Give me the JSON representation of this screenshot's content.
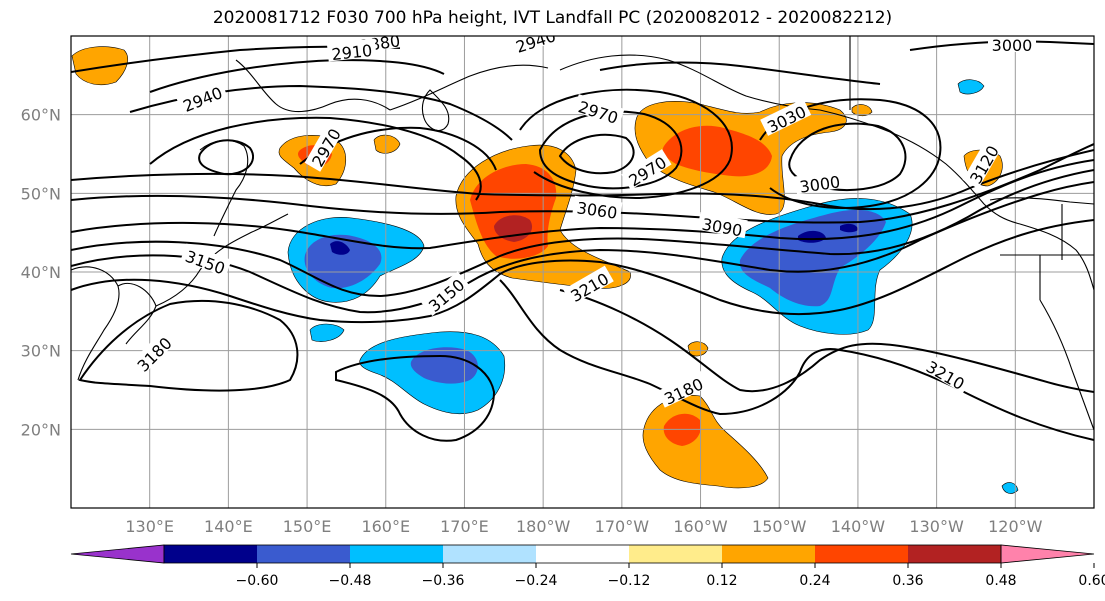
{
  "title": "2020081712 F030 700 hPa height, IVT Landfall PC (2020082012 - 2020082212)",
  "map": {
    "projection": "PlateCarree",
    "lon_range": [
      120,
      250
    ],
    "lat_range": [
      10,
      70
    ],
    "lat_labels": [
      "60°N",
      "50°N",
      "40°N",
      "30°N",
      "20°N"
    ],
    "lon_labels": [
      "130°E",
      "140°E",
      "150°E",
      "160°E",
      "170°E",
      "180°W",
      "170°W",
      "160°W",
      "150°W",
      "140°W",
      "130°W",
      "120°W"
    ],
    "contour_variable": "700 hPa height",
    "contour_labels": [
      "2880",
      "2910",
      "2940",
      "2940",
      "2970",
      "2970",
      "2970",
      "3000",
      "3000",
      "3030",
      "3060",
      "3090",
      "3120",
      "3150",
      "3150",
      "3180",
      "3180",
      "3210",
      "3210"
    ],
    "shading_variable": "IVT Landfall PC"
  },
  "colorbar": {
    "ticks": [
      "−0.60",
      "−0.48",
      "−0.36",
      "−0.24",
      "−0.12",
      "0.12",
      "0.24",
      "0.36",
      "0.48",
      "0.60"
    ],
    "colors": [
      "#9932cc",
      "#00008b",
      "#3a5bcf",
      "#00bfff",
      "#b0e2ff",
      "#ffffff",
      "#ffec8b",
      "#ffa500",
      "#ff4500",
      "#b22222",
      "#ff82ab"
    ],
    "extend": "both"
  }
}
